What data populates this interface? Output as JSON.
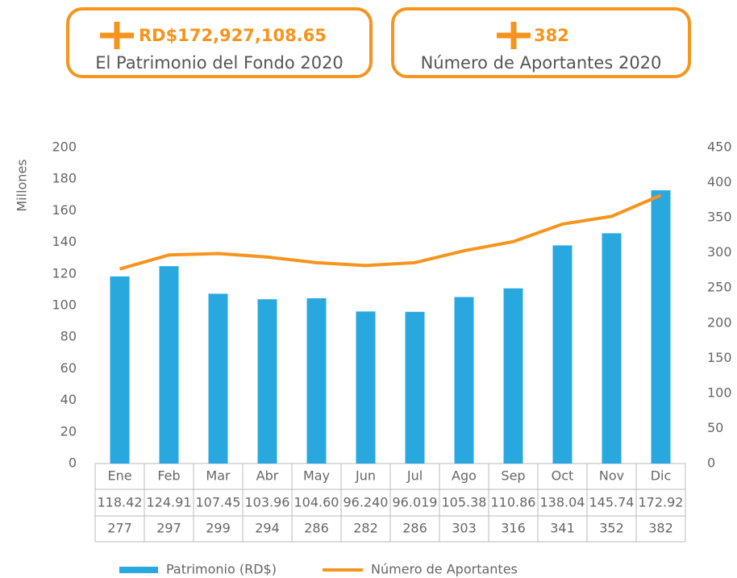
{
  "cards": [
    {
      "value": "RD$172,927,108.65",
      "label": "El Patrimonio del Fondo 2020"
    },
    {
      "value": "382",
      "label": "Número de Aportantes 2020"
    }
  ],
  "chart_data": {
    "type": "bar",
    "ylabel": "Millones",
    "categories": [
      "Ene",
      "Feb",
      "Mar",
      "Abr",
      "May",
      "Jun",
      "Jul",
      "Ago",
      "Sep",
      "Oct",
      "Nov",
      "Dic"
    ],
    "series": [
      {
        "name": "Patrimonio (RD$)",
        "type": "bar",
        "color": "#29a8e0",
        "values": [
          118.42,
          124.91,
          107.45,
          103.96,
          104.6,
          96.24,
          96.019,
          105.38,
          110.86,
          138.04,
          145.74,
          172.92
        ],
        "value_labels": [
          "118.42",
          "124.91",
          "107.45",
          "103.96",
          "104.60",
          "96.240",
          "96.019",
          "105.38",
          "110.86",
          "138.04",
          "145.74",
          "172.92"
        ]
      },
      {
        "name": "Número de Aportantes",
        "type": "line",
        "axis": "y2",
        "color": "#f7941d",
        "values": [
          277,
          297,
          299,
          294,
          286,
          282,
          286,
          303,
          316,
          341,
          352,
          382
        ]
      }
    ],
    "ylim": [
      0,
      200
    ],
    "yticks": [
      0,
      20,
      40,
      60,
      80,
      100,
      120,
      140,
      160,
      180,
      200
    ],
    "y2lim": [
      0,
      450
    ],
    "y2ticks": [
      0,
      50,
      100,
      150,
      200,
      250,
      300,
      350,
      400,
      450
    ]
  }
}
